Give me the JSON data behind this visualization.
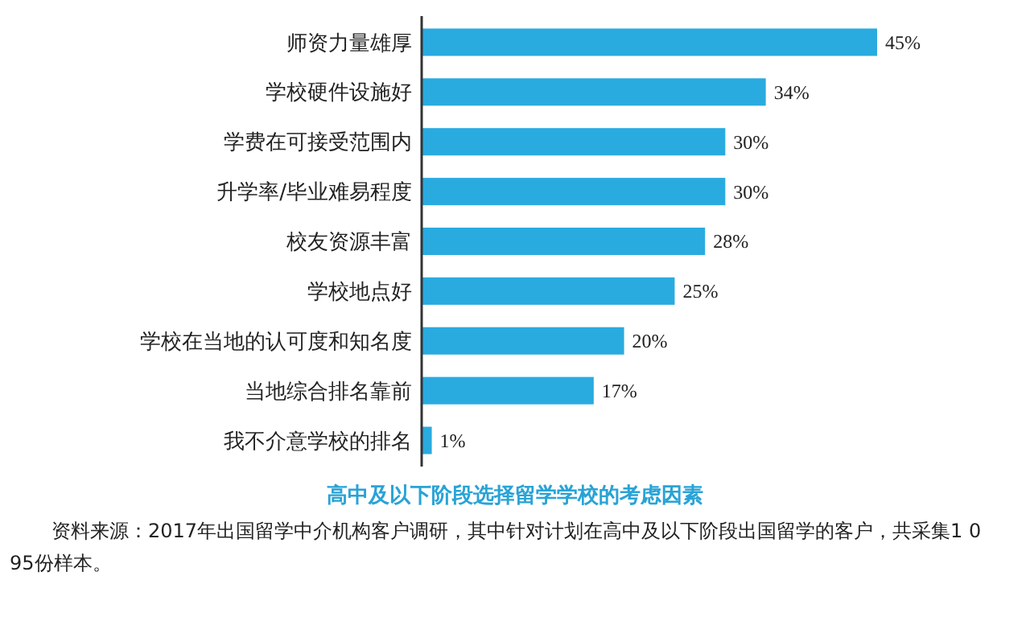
{
  "chart_data": {
    "type": "bar",
    "orientation": "horizontal",
    "title": "高中及以下阶段选择留学学校的考虑因素",
    "categories": [
      "师资力量雄厚",
      "学校硬件设施好",
      "学费在可接受范围内",
      "升学率/毕业难易程度",
      "校友资源丰富",
      "学校地点好",
      "学校在当地的认可度和知名度",
      "当地综合排名靠前",
      "我不介意学校的排名"
    ],
    "values": [
      45,
      34,
      30,
      30,
      28,
      25,
      20,
      17,
      1
    ],
    "value_labels": [
      "45%",
      "34%",
      "30%",
      "30%",
      "28%",
      "25%",
      "20%",
      "17%",
      "1%"
    ],
    "color": "#29abe0",
    "annotations": [
      "资料来源：2017年出国留学中介机构客户调研，其中针对计划在高中及以下阶段出国留学的客户，共采集1 095份样本。"
    ]
  }
}
